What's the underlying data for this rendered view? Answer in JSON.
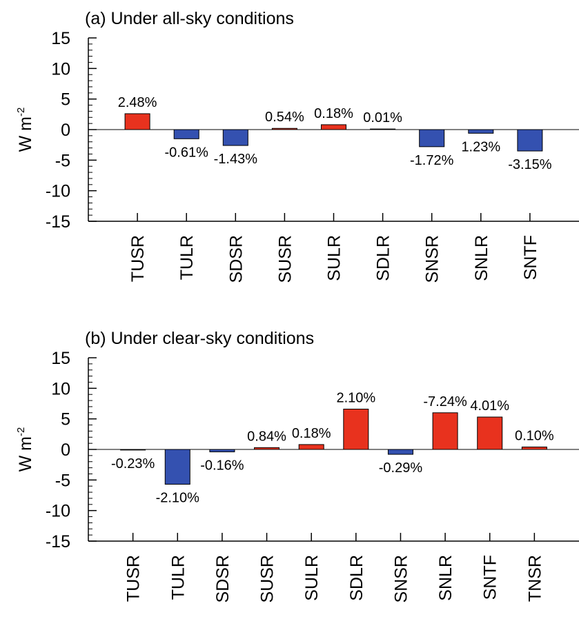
{
  "chart_data": [
    {
      "type": "bar",
      "title": "(a) Under all-sky conditions",
      "y_label": "W m",
      "y_label_superscript": "-2",
      "categories": [
        "TUSR",
        "TULR",
        "SDSR",
        "SUSR",
        "SULR",
        "SDLR",
        "SNSR",
        "SNLR",
        "SNTF"
      ],
      "values": [
        2.6,
        -1.5,
        -2.6,
        0.2,
        0.8,
        0.1,
        -2.8,
        -0.6,
        -3.5
      ],
      "percent_labels": [
        "2.48%",
        "-0.61%",
        "-1.43%",
        "0.54%",
        "0.18%",
        "0.01%",
        "-1.72%",
        "1.23%",
        "-3.15%"
      ],
      "positive_color": "#e8321e",
      "negative_color": "#3451b0",
      "ylim": [
        -15,
        15
      ],
      "yticks": [
        -15,
        -10,
        -5,
        0,
        5,
        10,
        15
      ]
    },
    {
      "type": "bar",
      "title": "(b) Under clear-sky conditions",
      "y_label": "W m",
      "y_label_superscript": "-2",
      "categories": [
        "TUSR",
        "TULR",
        "SDSR",
        "SUSR",
        "SULR",
        "SDLR",
        "SNSR",
        "SNLR",
        "SNTF",
        "TNSR"
      ],
      "values": [
        -0.1,
        -5.7,
        -0.4,
        0.3,
        0.8,
        6.6,
        -0.8,
        6.0,
        5.3,
        0.4
      ],
      "percent_labels": [
        "-0.23%",
        "-2.10%",
        "-0.16%",
        "0.84%",
        "0.18%",
        "2.10%",
        "-0.29%",
        "-7.24%",
        "4.01%",
        "0.10%"
      ],
      "positive_color": "#e8321e",
      "negative_color": "#3451b0",
      "ylim": [
        -15,
        15
      ],
      "yticks": [
        -15,
        -10,
        -5,
        0,
        5,
        10,
        15
      ]
    }
  ]
}
